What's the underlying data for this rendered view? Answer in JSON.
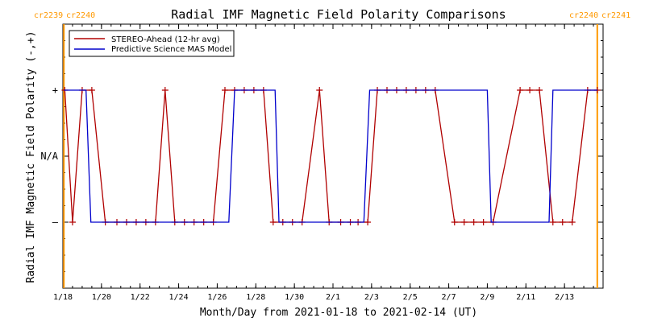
{
  "chart_data": {
    "type": "line",
    "title": "Radial IMF Magnetic Field Polarity Comparisons",
    "xlabel": "Month/Day from 2021-01-18 to 2021-02-14 (UT)",
    "ylabel": "Radial IMF Magnetic Field Polarity (-,+)",
    "x_start_date": "2021-01-18",
    "xlim_days": [
      0,
      28
    ],
    "y_ticks": [
      {
        "value": 1,
        "label": "+"
      },
      {
        "value": 0,
        "label": "N/A"
      },
      {
        "value": -1,
        "label": "–"
      }
    ],
    "ylim": [
      -2,
      2
    ],
    "x_ticks": [
      {
        "day": 0,
        "label": "1/18"
      },
      {
        "day": 2,
        "label": "1/20"
      },
      {
        "day": 4,
        "label": "1/22"
      },
      {
        "day": 6,
        "label": "1/24"
      },
      {
        "day": 8,
        "label": "1/26"
      },
      {
        "day": 10,
        "label": "1/28"
      },
      {
        "day": 12,
        "label": "1/30"
      },
      {
        "day": 14,
        "label": "2/1"
      },
      {
        "day": 16,
        "label": "2/3"
      },
      {
        "day": 18,
        "label": "2/5"
      },
      {
        "day": 20,
        "label": "2/7"
      },
      {
        "day": 22,
        "label": "2/9"
      },
      {
        "day": 24,
        "label": "2/11"
      },
      {
        "day": 26,
        "label": "2/13"
      }
    ],
    "carrington_markers": [
      {
        "day": 0.05,
        "label_left": "cr2239",
        "label_right": "cr2240",
        "color": "#ff9900"
      },
      {
        "day": 27.7,
        "label_left": "cr2240",
        "label_right": "cr2241",
        "color": "#ff9900"
      }
    ],
    "legend_position": "top-left",
    "series": [
      {
        "name": "STEREO-Ahead (12-hr avg)",
        "color": "#b00000",
        "markers": true,
        "points": [
          [
            0.1,
            1
          ],
          [
            0.5,
            -1
          ],
          [
            1.0,
            1
          ],
          [
            1.5,
            1
          ],
          [
            2.2,
            -1
          ],
          [
            2.8,
            -1
          ],
          [
            3.3,
            -1
          ],
          [
            3.8,
            -1
          ],
          [
            4.3,
            -1
          ],
          [
            4.8,
            -1
          ],
          [
            5.3,
            1
          ],
          [
            5.8,
            -1
          ],
          [
            6.3,
            -1
          ],
          [
            6.8,
            -1
          ],
          [
            7.3,
            -1
          ],
          [
            7.8,
            -1
          ],
          [
            8.4,
            1
          ],
          [
            8.9,
            1
          ],
          [
            9.4,
            1
          ],
          [
            9.9,
            1
          ],
          [
            10.4,
            1
          ],
          [
            10.9,
            -1
          ],
          [
            11.4,
            -1
          ],
          [
            11.9,
            -1
          ],
          [
            12.4,
            -1
          ],
          [
            13.3,
            1
          ],
          [
            13.8,
            -1
          ],
          [
            14.4,
            -1
          ],
          [
            14.9,
            -1
          ],
          [
            15.3,
            -1
          ],
          [
            15.8,
            -1
          ],
          [
            16.3,
            1
          ],
          [
            16.8,
            1
          ],
          [
            17.3,
            1
          ],
          [
            17.8,
            1
          ],
          [
            18.3,
            1
          ],
          [
            18.8,
            1
          ],
          [
            19.3,
            1
          ],
          [
            20.3,
            -1
          ],
          [
            20.8,
            -1
          ],
          [
            21.3,
            -1
          ],
          [
            21.8,
            -1
          ],
          [
            22.3,
            -1
          ],
          [
            23.7,
            1
          ],
          [
            24.2,
            1
          ],
          [
            24.7,
            1
          ],
          [
            25.4,
            -1
          ],
          [
            25.9,
            -1
          ],
          [
            26.4,
            -1
          ],
          [
            27.2,
            1
          ],
          [
            27.7,
            1
          ]
        ]
      },
      {
        "name": "Predictive Science MAS Model",
        "color": "#0000cc",
        "markers": false,
        "points": [
          [
            0.05,
            1
          ],
          [
            1.2,
            1
          ],
          [
            1.45,
            -1
          ],
          [
            8.6,
            -1
          ],
          [
            8.9,
            1
          ],
          [
            11.0,
            1
          ],
          [
            11.2,
            -1
          ],
          [
            15.6,
            -1
          ],
          [
            15.9,
            1
          ],
          [
            22.0,
            1
          ],
          [
            22.2,
            -1
          ],
          [
            25.2,
            -1
          ],
          [
            25.4,
            1
          ],
          [
            27.7,
            1
          ]
        ]
      }
    ]
  }
}
